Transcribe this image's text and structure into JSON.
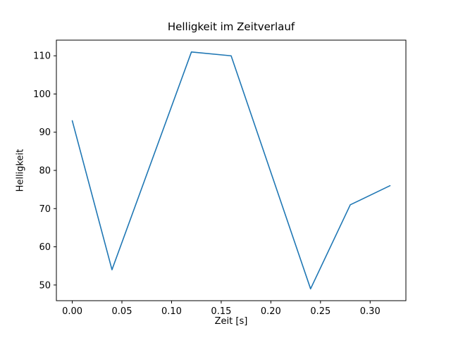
{
  "figure": {
    "title": "Helligkeit im Zeitverlauf",
    "xlabel": "Zeit [s]",
    "ylabel": "Helligkeit"
  },
  "chart_data": {
    "type": "line",
    "title": "Helligkeit im Zeitverlauf",
    "xlabel": "Zeit [s]",
    "ylabel": "Helligkeit",
    "x": [
      0.0,
      0.04,
      0.12,
      0.16,
      0.24,
      0.28,
      0.32
    ],
    "y": [
      93,
      54,
      111,
      110,
      49,
      71,
      76
    ],
    "xticks": [
      0.0,
      0.05,
      0.1,
      0.15,
      0.2,
      0.25,
      0.3
    ],
    "xtick_labels": [
      "0.00",
      "0.05",
      "0.10",
      "0.15",
      "0.20",
      "0.25",
      "0.30"
    ],
    "yticks": [
      50,
      60,
      70,
      80,
      90,
      100,
      110
    ],
    "ytick_labels": [
      "50",
      "60",
      "70",
      "80",
      "90",
      "100",
      "110"
    ],
    "xlim": [
      -0.016,
      0.336
    ],
    "ylim": [
      45.9,
      114.1
    ],
    "line_color": "#1f77b4",
    "axis_color": "#000000",
    "grid": false,
    "legend": null
  }
}
